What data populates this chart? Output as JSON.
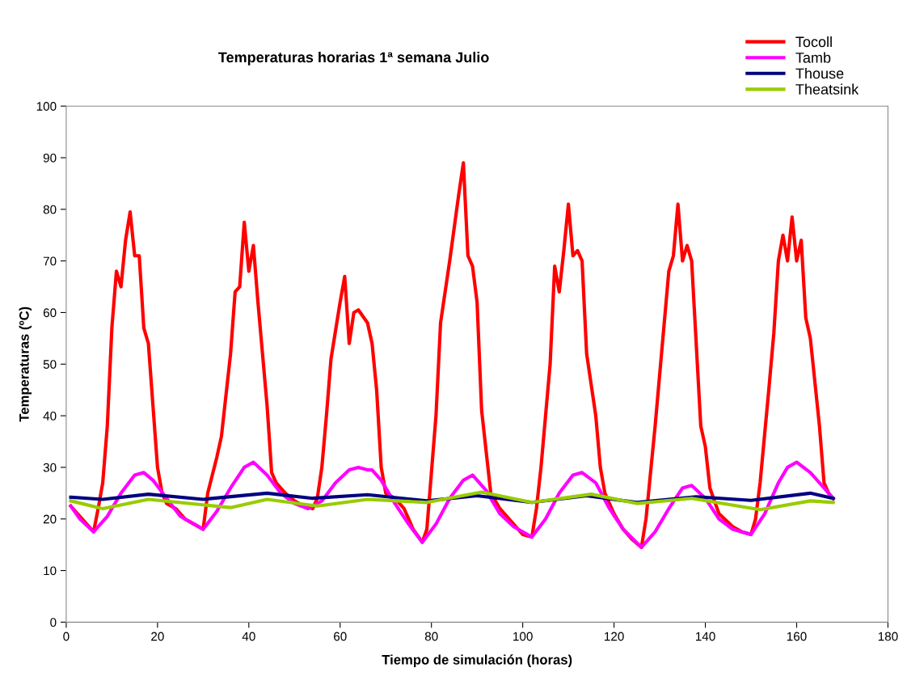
{
  "chart_data": {
    "type": "line",
    "title": "Temperaturas horarias 1ª semana Julio",
    "xlabel": "Tiempo de simulación (horas)",
    "ylabel": "Temperaturas (ºC)",
    "xlim": [
      0,
      180
    ],
    "xticks": [
      0,
      20,
      40,
      60,
      80,
      100,
      120,
      140,
      160,
      180
    ],
    "ylim": [
      0,
      100
    ],
    "yticks": [
      0,
      10,
      20,
      30,
      40,
      50,
      60,
      70,
      80,
      90,
      100
    ],
    "grid": false,
    "legend": "top right",
    "marker": "none",
    "line_style": "solid",
    "series": [
      {
        "name": "Tocoll",
        "color": "#ff0000",
        "x": [
          1,
          6,
          7,
          8,
          9,
          10,
          11,
          12,
          13,
          14,
          15,
          16,
          17,
          18,
          19,
          20,
          21,
          22,
          24,
          26,
          28,
          30,
          31,
          33,
          34,
          36,
          37,
          38,
          39,
          40,
          41,
          42,
          44,
          45,
          46,
          48,
          50,
          52,
          54,
          55,
          56,
          57,
          58,
          60,
          61,
          62,
          63,
          64,
          66,
          67,
          68,
          69,
          70,
          72,
          74,
          76,
          78,
          79,
          81,
          82,
          84,
          86,
          87,
          88,
          89,
          90,
          91,
          92,
          93,
          95,
          98,
          100,
          102,
          103,
          104,
          106,
          107,
          108,
          109,
          110,
          111,
          112,
          113,
          114,
          116,
          117,
          118,
          120,
          122,
          124,
          126,
          127,
          129,
          130,
          132,
          133,
          134,
          135,
          136,
          137,
          139,
          140,
          141,
          143,
          146,
          148,
          150,
          151,
          152,
          154,
          155,
          156,
          157,
          158,
          159,
          160,
          161,
          162,
          163,
          165,
          166,
          167,
          168
        ],
        "values": [
          22.5,
          17.5,
          22,
          27,
          38,
          57,
          68,
          65,
          74,
          79.5,
          71,
          71,
          57,
          54,
          42,
          30,
          25,
          23,
          22,
          20,
          19,
          18,
          25,
          32,
          36,
          52,
          64,
          65,
          77.5,
          68,
          73,
          62,
          42,
          29,
          27,
          25,
          23.5,
          22.5,
          22,
          24,
          30,
          40,
          51,
          62,
          67,
          54,
          60,
          60.5,
          58,
          54,
          45,
          30,
          25,
          24,
          22,
          18,
          15.5,
          18,
          40,
          58,
          70,
          83,
          89,
          71,
          69,
          62,
          41,
          33,
          25,
          22,
          19,
          17,
          16.5,
          22,
          30,
          50,
          69,
          64,
          72,
          81,
          71,
          72,
          70,
          52,
          40,
          30,
          25,
          21,
          18,
          16,
          14.5,
          20,
          38,
          48,
          68,
          71,
          81,
          70,
          73,
          70,
          38,
          34,
          26,
          21,
          18.5,
          17.5,
          17,
          20,
          27,
          46,
          56,
          70,
          75,
          70,
          78.5,
          70,
          74,
          59,
          55,
          38,
          27,
          25,
          24
        ]
      },
      {
        "name": "Tamb",
        "color": "#ff00ff",
        "x": [
          1,
          3,
          6,
          9,
          12,
          15,
          17,
          19,
          22,
          25,
          28,
          30,
          33,
          36,
          39,
          41,
          44,
          47,
          50,
          53,
          56,
          59,
          62,
          64,
          66,
          67,
          69,
          72,
          75,
          78,
          81,
          84,
          87,
          89,
          92,
          95,
          98,
          102,
          105,
          108,
          111,
          113,
          116,
          119,
          122,
          126,
          129,
          132,
          135,
          137,
          140,
          143,
          146,
          150,
          153,
          156,
          158,
          160,
          163,
          166,
          168
        ],
        "values": [
          22.5,
          20,
          17.5,
          20.5,
          25,
          28.5,
          29,
          27.5,
          24,
          20.5,
          19,
          18,
          21.5,
          26,
          30,
          31,
          28.5,
          25,
          23,
          22,
          23.5,
          27,
          29.5,
          30,
          29.5,
          29.5,
          27.5,
          23,
          19,
          15.5,
          19,
          24,
          27.5,
          28.5,
          25.5,
          21,
          18.5,
          16.5,
          20,
          25,
          28.5,
          29,
          27,
          22,
          18,
          14.5,
          17.5,
          22,
          26,
          26.5,
          24,
          20,
          18,
          17,
          21,
          27,
          30,
          31,
          29,
          26,
          24
        ]
      },
      {
        "name": "Thouse",
        "color": "#000080",
        "x": [
          1,
          8,
          18,
          30,
          44,
          54,
          66,
          79,
          90,
          102,
          114,
          125,
          138,
          150,
          163,
          168
        ],
        "values": [
          24.2,
          23.8,
          24.8,
          23.8,
          25,
          24,
          24.7,
          23.5,
          24.5,
          23.2,
          24.5,
          23.2,
          24.3,
          23.6,
          25,
          24
        ]
      },
      {
        "name": "Theatsink",
        "color": "#99cc00",
        "x": [
          1,
          8,
          18,
          36,
          44,
          55,
          66,
          79,
          91,
          102,
          115,
          125,
          137,
          152,
          163,
          168
        ],
        "values": [
          23.5,
          22,
          23.8,
          22.2,
          23.8,
          22.5,
          23.8,
          23.2,
          25.2,
          23.2,
          24.8,
          23,
          24,
          21.8,
          23.5,
          23.2
        ]
      }
    ]
  }
}
